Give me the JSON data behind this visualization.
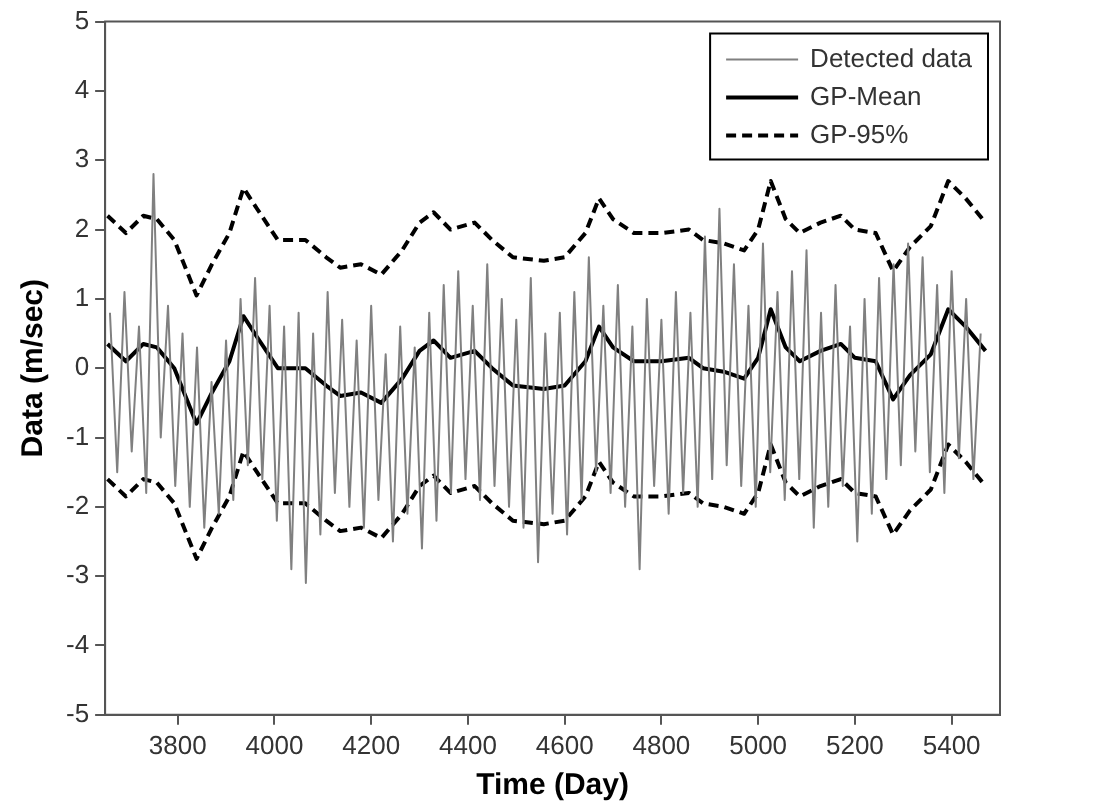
{
  "chart_data": {
    "type": "line",
    "xlabel": "Time (Day)",
    "ylabel": "Data (m/sec)",
    "xlim": [
      3650,
      5500
    ],
    "ylim": [
      -5,
      5
    ],
    "xticks": [
      3800,
      4000,
      4200,
      4400,
      4600,
      4800,
      5000,
      5200,
      5400
    ],
    "yticks": [
      -5,
      -4,
      -3,
      -2,
      -1,
      0,
      1,
      2,
      3,
      4,
      5
    ],
    "grid": false,
    "legend": "top right",
    "marker": "none",
    "series": [
      {
        "name": "Detected data",
        "color": "#808080",
        "line_style": "solid",
        "x": [
          3660,
          3675,
          3690,
          3705,
          3720,
          3735,
          3750,
          3765,
          3780,
          3795,
          3810,
          3825,
          3840,
          3855,
          3870,
          3885,
          3900,
          3915,
          3930,
          3945,
          3960,
          3975,
          3990,
          4005,
          4020,
          4035,
          4050,
          4065,
          4080,
          4095,
          4110,
          4125,
          4140,
          4155,
          4170,
          4185,
          4200,
          4215,
          4230,
          4245,
          4260,
          4275,
          4290,
          4305,
          4320,
          4335,
          4350,
          4365,
          4380,
          4395,
          4410,
          4425,
          4440,
          4455,
          4470,
          4485,
          4500,
          4515,
          4530,
          4545,
          4560,
          4575,
          4590,
          4605,
          4620,
          4635,
          4650,
          4665,
          4680,
          4695,
          4710,
          4725,
          4740,
          4755,
          4770,
          4785,
          4800,
          4815,
          4830,
          4845,
          4860,
          4875,
          4890,
          4905,
          4920,
          4935,
          4950,
          4965,
          4980,
          4995,
          5010,
          5025,
          5040,
          5055,
          5070,
          5085,
          5100,
          5115,
          5130,
          5145,
          5160,
          5175,
          5190,
          5205,
          5220,
          5235,
          5250,
          5265,
          5280,
          5295,
          5310,
          5325,
          5340,
          5355,
          5370,
          5385,
          5400,
          5415,
          5430,
          5445,
          5460
        ],
        "values": [
          0.8,
          -1.5,
          1.1,
          -1.2,
          0.6,
          -1.8,
          2.8,
          -1.0,
          0.9,
          -1.7,
          0.5,
          -2.0,
          0.3,
          -2.3,
          -0.2,
          -2.1,
          0.4,
          -1.9,
          1.0,
          -1.4,
          1.3,
          -1.6,
          0.9,
          -2.2,
          0.6,
          -2.9,
          0.8,
          -3.1,
          0.5,
          -2.4,
          1.1,
          -1.8,
          0.7,
          -2.0,
          0.4,
          -2.3,
          0.9,
          -1.9,
          0.2,
          -2.5,
          0.6,
          -2.1,
          0.3,
          -2.6,
          0.8,
          -2.2,
          1.2,
          -1.8,
          1.4,
          -1.6,
          0.9,
          -1.9,
          1.5,
          -1.7,
          1.0,
          -2.0,
          0.7,
          -2.3,
          1.3,
          -2.8,
          0.5,
          -2.1,
          0.8,
          -2.4,
          1.1,
          -1.9,
          1.6,
          -1.5,
          0.9,
          -1.8,
          1.2,
          -2.0,
          0.6,
          -2.9,
          1.0,
          -1.7,
          0.7,
          -2.1,
          1.1,
          -1.8,
          0.8,
          -2.0,
          1.9,
          -1.6,
          2.3,
          -1.4,
          1.5,
          -1.7,
          0.9,
          -2.0,
          1.8,
          -1.5,
          1.1,
          -1.9,
          1.4,
          -1.6,
          1.7,
          -2.3,
          0.8,
          -2.0,
          1.2,
          -1.7,
          0.6,
          -2.5,
          1.0,
          -2.1,
          1.3,
          -1.6,
          1.5,
          -1.4,
          1.8,
          -1.2,
          1.6,
          -1.5,
          1.2,
          -1.8,
          1.4,
          -1.3,
          1.0,
          -1.6,
          0.5
        ]
      },
      {
        "name": "GP-Mean",
        "color": "#000000",
        "line_style": "solid",
        "x": [
          3655,
          3693,
          3729,
          3757,
          3793,
          3839,
          3871,
          3907,
          3936,
          3964,
          4007,
          4064,
          4107,
          4136,
          4179,
          4221,
          4264,
          4300,
          4329,
          4364,
          4414,
          4450,
          4493,
          4557,
          4600,
          4643,
          4671,
          4700,
          4743,
          4800,
          4857,
          4886,
          4929,
          4971,
          5000,
          5026,
          5057,
          5086,
          5129,
          5171,
          5200,
          5243,
          5279,
          5314,
          5357,
          5393,
          5429,
          5470
        ],
        "values": [
          0.35,
          0.1,
          0.35,
          0.3,
          0,
          -0.8,
          -0.35,
          0.1,
          0.75,
          0.45,
          0,
          0,
          -0.25,
          -0.4,
          -0.35,
          -0.5,
          -0.15,
          0.25,
          0.4,
          0.15,
          0.25,
          0,
          -0.25,
          -0.3,
          -0.25,
          0.1,
          0.6,
          0.3,
          0.1,
          0.1,
          0.15,
          0,
          -0.05,
          -0.15,
          0.15,
          0.85,
          0.3,
          0.1,
          0.25,
          0.35,
          0.15,
          0.1,
          -0.45,
          -0.1,
          0.2,
          0.85,
          0.6,
          0.25
        ]
      },
      {
        "name": "GP-95%",
        "color": "#000000",
        "line_style": "dashed",
        "x": [
          3655,
          3693,
          3729,
          3757,
          3793,
          3839,
          3871,
          3907,
          3936,
          3964,
          4007,
          4064,
          4107,
          4136,
          4179,
          4221,
          4264,
          4300,
          4329,
          4364,
          4414,
          4450,
          4493,
          4557,
          4600,
          4643,
          4671,
          4700,
          4743,
          4800,
          4857,
          4886,
          4929,
          4971,
          5000,
          5026,
          5057,
          5086,
          5129,
          5171,
          5200,
          5243,
          5279,
          5314,
          5357,
          5393,
          5429,
          5470
        ],
        "values": [
          2.2,
          1.95,
          2.2,
          2.15,
          1.85,
          1.05,
          1.5,
          1.95,
          2.6,
          2.3,
          1.85,
          1.85,
          1.6,
          1.45,
          1.5,
          1.35,
          1.7,
          2.1,
          2.25,
          2.0,
          2.1,
          1.85,
          1.6,
          1.55,
          1.6,
          1.95,
          2.45,
          2.15,
          1.95,
          1.95,
          2.0,
          1.85,
          1.8,
          1.7,
          2.0,
          2.7,
          2.15,
          1.95,
          2.1,
          2.2,
          2.0,
          1.95,
          1.4,
          1.75,
          2.05,
          2.7,
          2.45,
          2.1
        ]
      },
      {
        "color": "#000000",
        "line_style": "dashed",
        "x": [
          3655,
          3693,
          3729,
          3757,
          3793,
          3839,
          3871,
          3907,
          3936,
          3964,
          4007,
          4064,
          4107,
          4136,
          4179,
          4221,
          4264,
          4300,
          4329,
          4364,
          4414,
          4450,
          4493,
          4557,
          4600,
          4643,
          4671,
          4700,
          4743,
          4800,
          4857,
          4886,
          4929,
          4971,
          5000,
          5026,
          5057,
          5086,
          5129,
          5171,
          5200,
          5243,
          5279,
          5314,
          5357,
          5393,
          5429,
          5470
        ],
        "values": [
          -1.6,
          -1.85,
          -1.6,
          -1.65,
          -1.95,
          -2.75,
          -2.3,
          -1.85,
          -1.2,
          -1.5,
          -1.95,
          -1.95,
          -2.2,
          -2.35,
          -2.3,
          -2.45,
          -2.1,
          -1.7,
          -1.55,
          -1.8,
          -1.7,
          -1.95,
          -2.2,
          -2.25,
          -2.2,
          -1.85,
          -1.35,
          -1.65,
          -1.85,
          -1.85,
          -1.8,
          -1.95,
          -2.0,
          -2.1,
          -1.8,
          -1.1,
          -1.65,
          -1.85,
          -1.7,
          -1.6,
          -1.8,
          -1.85,
          -2.4,
          -2.05,
          -1.75,
          -1.1,
          -1.35,
          -1.7
        ]
      }
    ]
  }
}
